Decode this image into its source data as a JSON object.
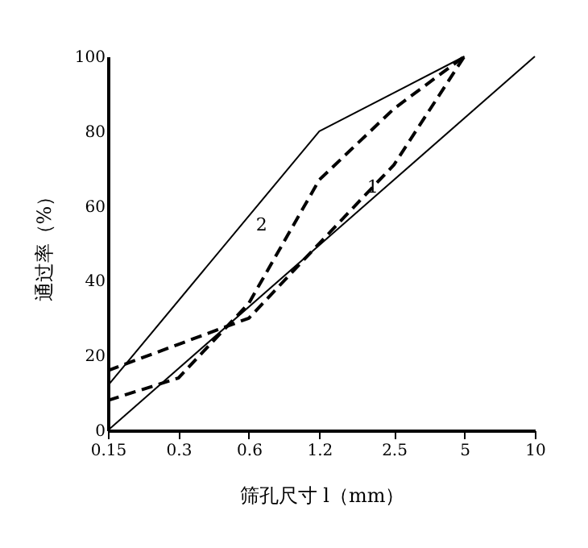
{
  "chart_data": {
    "type": "line",
    "xlabel": "筛孔尺寸 l（mm）",
    "ylabel": "通过率（%）",
    "log": "x",
    "xlim": [
      0.15,
      10
    ],
    "xticks": [
      0.15,
      0.3,
      0.6,
      1.2,
      2.5,
      5,
      10
    ],
    "ylim": [
      0,
      100
    ],
    "yticks": [
      0,
      20,
      40,
      60,
      80,
      100
    ],
    "grid": false,
    "series": [
      {
        "color": "#000000",
        "line_style": "solid",
        "x": [
          0.15,
          1.2,
          5
        ],
        "values": [
          12,
          80,
          100
        ]
      },
      {
        "color": "#000000",
        "line_style": "solid",
        "x": [
          0.15,
          10
        ],
        "values": [
          0,
          100
        ]
      },
      {
        "name": "1",
        "color": "#000000",
        "line_style": "dashed",
        "x": [
          0.15,
          0.3,
          0.6,
          1.2,
          2.5,
          5
        ],
        "values": [
          16,
          23,
          30,
          50,
          71,
          100
        ]
      },
      {
        "name": "2",
        "color": "#000000",
        "line_style": "dashed",
        "x": [
          0.15,
          0.3,
          0.6,
          1.2,
          2.5,
          5
        ],
        "values": [
          8,
          14,
          34,
          67,
          86,
          100
        ]
      }
    ]
  }
}
